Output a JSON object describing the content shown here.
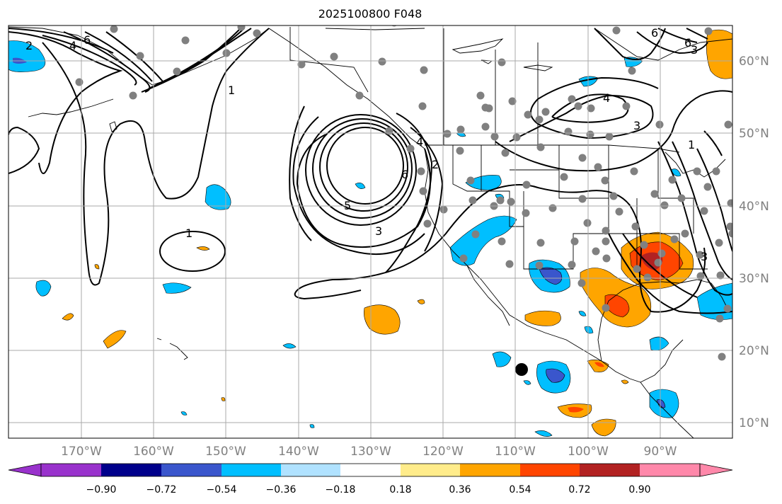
{
  "title": "2025100800 F048",
  "lon_labels": [
    "170°W",
    "160°W",
    "150°W",
    "140°W",
    "130°W",
    "120°W",
    "110°W",
    "100°W",
    "90°W"
  ],
  "lat_labels": [
    "60°N",
    "50°N",
    "40°N",
    "30°N",
    "20°N",
    "10°N"
  ],
  "contour_labels": [
    "2",
    "4",
    "6",
    "1",
    "1",
    "6",
    "3",
    "5",
    "6",
    "4",
    "3",
    "3",
    "6",
    "3",
    "4",
    "2",
    "1"
  ],
  "colorbar": {
    "ticks": [
      "−0.90",
      "−0.72",
      "−0.54",
      "−0.36",
      "−0.18",
      "0.18",
      "0.36",
      "0.54",
      "0.72",
      "0.90"
    ],
    "colors": [
      "#9932cc",
      "#00008b",
      "#3a56cc",
      "#00bfff",
      "#b0e2ff",
      "#ffffff",
      "#ffec8b",
      "#ffa500",
      "#ff4500",
      "#b22222",
      "#ff88aa"
    ]
  },
  "colors": {
    "grid": "#aaaaaa",
    "axis_label": "#808080",
    "station": "#808080",
    "marker": "#000000"
  }
}
